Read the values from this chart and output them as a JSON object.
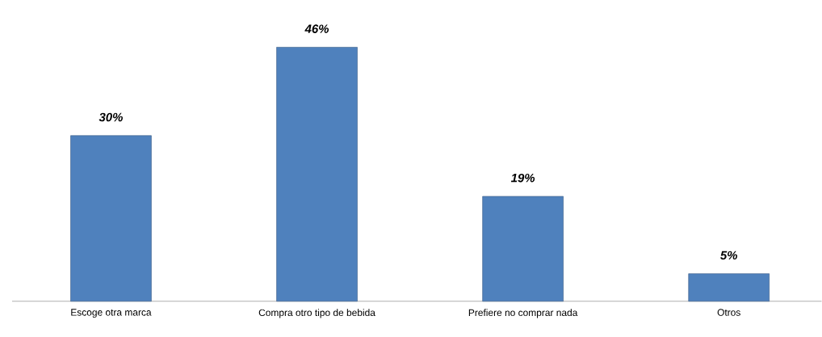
{
  "chart_data": {
    "type": "bar",
    "categories": [
      "Escoge otra marca",
      "Compra otro tipo de bebida",
      "Prefiere no comprar nada",
      "Otros"
    ],
    "values": [
      30,
      46,
      19,
      5
    ],
    "value_labels": [
      "30%",
      "46%",
      "19%",
      "5%"
    ],
    "color": "#4f81bd"
  }
}
